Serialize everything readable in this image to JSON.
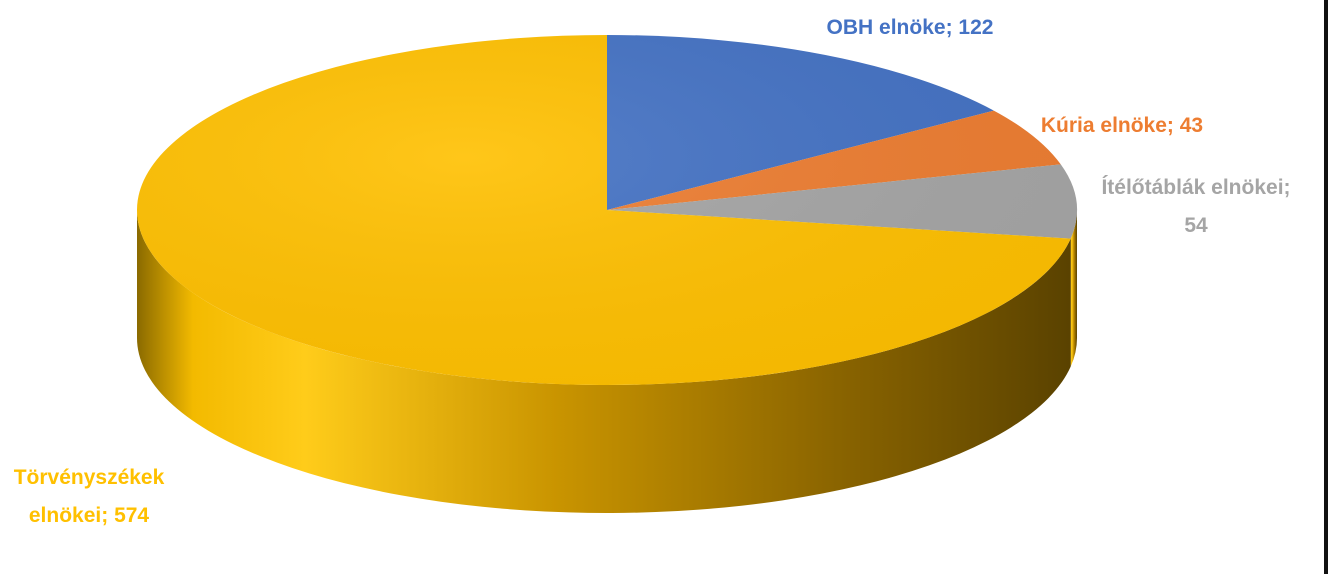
{
  "chart_data": {
    "type": "pie",
    "style": "3d",
    "title": "",
    "legend": "none",
    "labels_show": "category-and-value",
    "slices": [
      {
        "name": "OBH elnöke",
        "value": 122,
        "color": "#4472C4",
        "label": "OBH elnöke; 122"
      },
      {
        "name": "Kúria elnöke",
        "value": 43,
        "color": "#ED7D31",
        "label": "Kúria elnöke; 43"
      },
      {
        "name": "Ítélőtáblák elnökei",
        "value": 54,
        "color": "#A5A5A5",
        "label_lines": [
          "Ítélőtáblák elnökei;",
          "54"
        ]
      },
      {
        "name": "Törvényszékek elnökei",
        "value": 574,
        "color": "#FFC000",
        "label_lines": [
          "Törvényszékek",
          "elnökei; 574"
        ]
      }
    ]
  }
}
